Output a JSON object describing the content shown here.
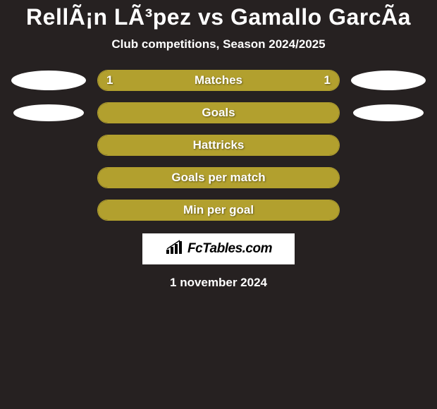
{
  "title": "RellÃ¡n LÃ³pez vs Gamallo GarcÃ­a",
  "subtitle": "Club competitions, Season 2024/2025",
  "date": "1 november 2024",
  "branding": {
    "text": "FcTables.com"
  },
  "colors": {
    "background": "#262121",
    "bar_fill": "#b2a02e",
    "bar_border": "#b2a02e",
    "bar_empty": "#262121",
    "ellipse": "#ffffff",
    "text": "#ffffff"
  },
  "stats": [
    {
      "label": "Matches",
      "left_value": "1",
      "right_value": "1",
      "fill_pct": 100,
      "show_left_ellipse": true,
      "show_right_ellipse": true,
      "ellipse_size": "large"
    },
    {
      "label": "Goals",
      "left_value": "",
      "right_value": "",
      "fill_pct": 100,
      "show_left_ellipse": true,
      "show_right_ellipse": true,
      "ellipse_size": "small"
    },
    {
      "label": "Hattricks",
      "left_value": "",
      "right_value": "",
      "fill_pct": 100,
      "show_left_ellipse": false,
      "show_right_ellipse": false
    },
    {
      "label": "Goals per match",
      "left_value": "",
      "right_value": "",
      "fill_pct": 100,
      "show_left_ellipse": false,
      "show_right_ellipse": false
    },
    {
      "label": "Min per goal",
      "left_value": "",
      "right_value": "",
      "fill_pct": 100,
      "show_left_ellipse": false,
      "show_right_ellipse": false
    }
  ]
}
